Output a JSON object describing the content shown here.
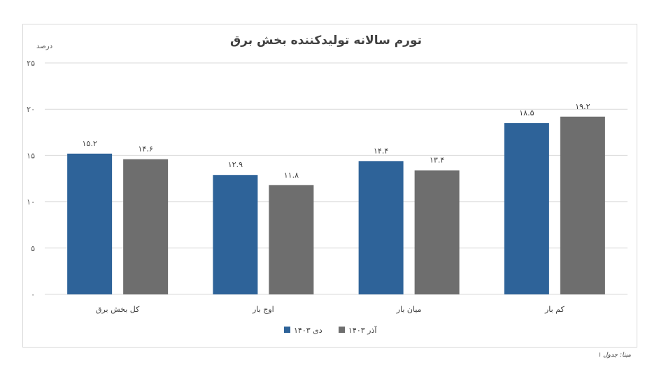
{
  "chart_data": {
    "type": "bar",
    "title": "تورم سالانه تولیدکننده بخش برق",
    "ylabel": "درصد",
    "ylim": [
      0,
      25
    ],
    "yticks": [
      "۰",
      "۵",
      "۱۰",
      "۱۵",
      "۲۰",
      "۲۵"
    ],
    "ytick_values": [
      0,
      5,
      10,
      15,
      20,
      25
    ],
    "grid": true,
    "legend_position": "bottom",
    "categories": [
      "کل بخش برق",
      "اوج بار",
      "میان بار",
      "کم بار"
    ],
    "series": [
      {
        "name": "دی ۱۴۰۳",
        "color": "#2e6399",
        "values": [
          15.2,
          12.9,
          14.4,
          18.5
        ],
        "labels": [
          "۱۵.۲",
          "۱۲.۹",
          "۱۴.۴",
          "۱۸.۵"
        ]
      },
      {
        "name": "آذر ۱۴۰۳",
        "color": "#6e6e6e",
        "values": [
          14.6,
          11.8,
          13.4,
          19.2
        ],
        "labels": [
          "۱۴.۶",
          "۱۱.۸",
          "۱۳.۴",
          "۱۹.۲"
        ]
      }
    ],
    "source": "مبنا: جدول ۱"
  }
}
